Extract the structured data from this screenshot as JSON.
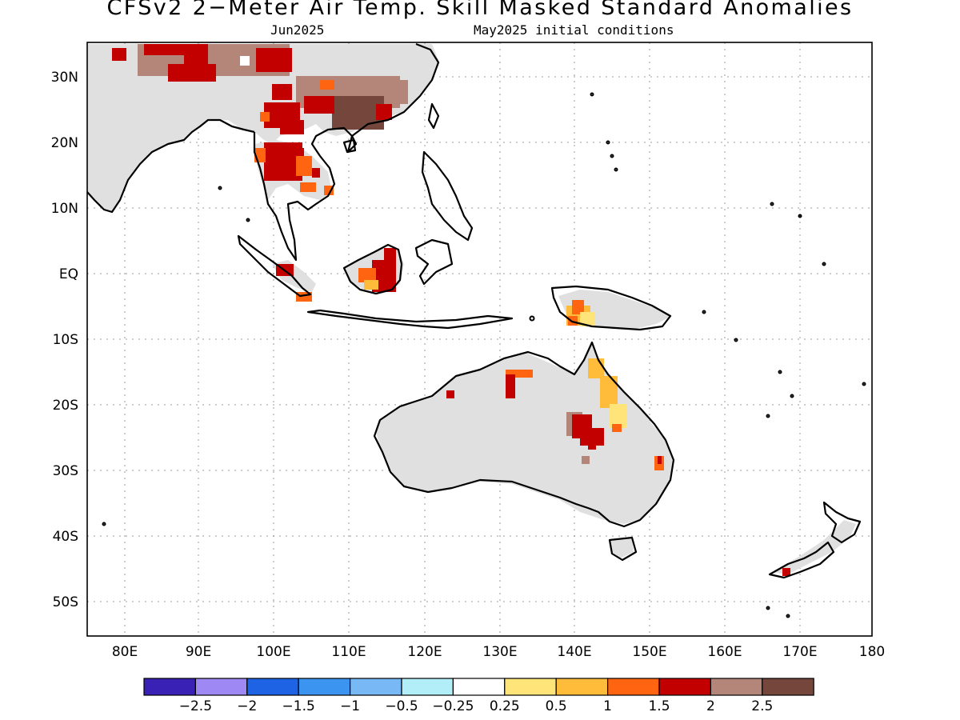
{
  "title": "CFSv2 2−Meter Air Temp. Skill Masked Standard Anomalies",
  "subtitle_left": "Jun2025",
  "subtitle_right": "May2025 initial conditions",
  "axes": {
    "lat_labels": [
      "30N",
      "20N",
      "10N",
      "EQ",
      "10S",
      "20S",
      "30S",
      "40S",
      "50S"
    ],
    "lon_labels": [
      "80E",
      "90E",
      "100E",
      "110E",
      "120E",
      "130E",
      "140E",
      "150E",
      "160E",
      "170E",
      "180"
    ]
  },
  "legend": {
    "colors": [
      "#3a21b5",
      "#9e88f3",
      "#1d63e3",
      "#3b95f0",
      "#77b8f5",
      "#b2eef8",
      "#ffffff",
      "#ffe47a",
      "#ffbc3a",
      "#ff6510",
      "#c20000",
      "#b38679",
      "#74463c"
    ],
    "labels": [
      "−2.5",
      "−2",
      "−1.5",
      "−1",
      "−0.5",
      "−0.25",
      "0.25",
      "0.5",
      "1",
      "1.5",
      "2",
      "2.5"
    ]
  },
  "colors": {
    "skill_mask": "#e0e0e0",
    "grid": "#9a9a9a",
    "coastline": "#000000"
  }
}
